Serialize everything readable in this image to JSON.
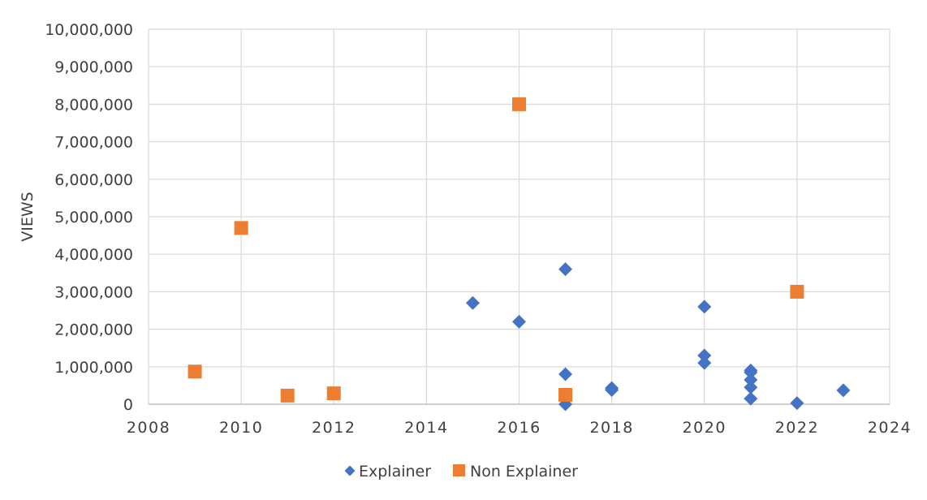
{
  "chart_data": {
    "type": "scatter",
    "title": "",
    "xlabel": "",
    "ylabel": "VIEWS",
    "xlim": [
      2008,
      2024
    ],
    "ylim": [
      0,
      10000000
    ],
    "x_ticks": [
      2008,
      2010,
      2012,
      2014,
      2016,
      2018,
      2020,
      2022,
      2024
    ],
    "x_tick_labels": [
      "2008",
      "2010",
      "2012",
      "2014",
      "2016",
      "2018",
      "2020",
      "2022",
      "2024"
    ],
    "y_ticks": [
      0,
      1000000,
      2000000,
      3000000,
      4000000,
      5000000,
      6000000,
      7000000,
      8000000,
      9000000,
      10000000
    ],
    "y_tick_labels": [
      "0",
      "1,000,000",
      "2,000,000",
      "3,000,000",
      "4,000,000",
      "5,000,000",
      "6,000,000",
      "7,000,000",
      "8,000,000",
      "9,000,000",
      "10,000,000"
    ],
    "grid": true,
    "legend_position": "bottom",
    "series": [
      {
        "name": "Explainer",
        "marker": "diamond",
        "color": "#4472C4",
        "points": [
          {
            "x": 2015,
            "y": 2700000
          },
          {
            "x": 2016,
            "y": 2200000
          },
          {
            "x": 2017,
            "y": 3600000
          },
          {
            "x": 2017,
            "y": 800000
          },
          {
            "x": 2017,
            "y": 0
          },
          {
            "x": 2018,
            "y": 430000
          },
          {
            "x": 2018,
            "y": 380000
          },
          {
            "x": 2020,
            "y": 2600000
          },
          {
            "x": 2020,
            "y": 1300000
          },
          {
            "x": 2020,
            "y": 1100000
          },
          {
            "x": 2021,
            "y": 900000
          },
          {
            "x": 2021,
            "y": 850000
          },
          {
            "x": 2021,
            "y": 650000
          },
          {
            "x": 2021,
            "y": 450000
          },
          {
            "x": 2021,
            "y": 150000
          },
          {
            "x": 2022,
            "y": 30000
          },
          {
            "x": 2023,
            "y": 370000
          }
        ]
      },
      {
        "name": "Non Explainer",
        "marker": "square",
        "color": "#ED7D31",
        "points": [
          {
            "x": 2009,
            "y": 870000
          },
          {
            "x": 2010,
            "y": 4700000
          },
          {
            "x": 2011,
            "y": 230000
          },
          {
            "x": 2012,
            "y": 290000
          },
          {
            "x": 2016,
            "y": 8000000
          },
          {
            "x": 2017,
            "y": 250000
          },
          {
            "x": 2022,
            "y": 3000000
          }
        ]
      }
    ]
  }
}
